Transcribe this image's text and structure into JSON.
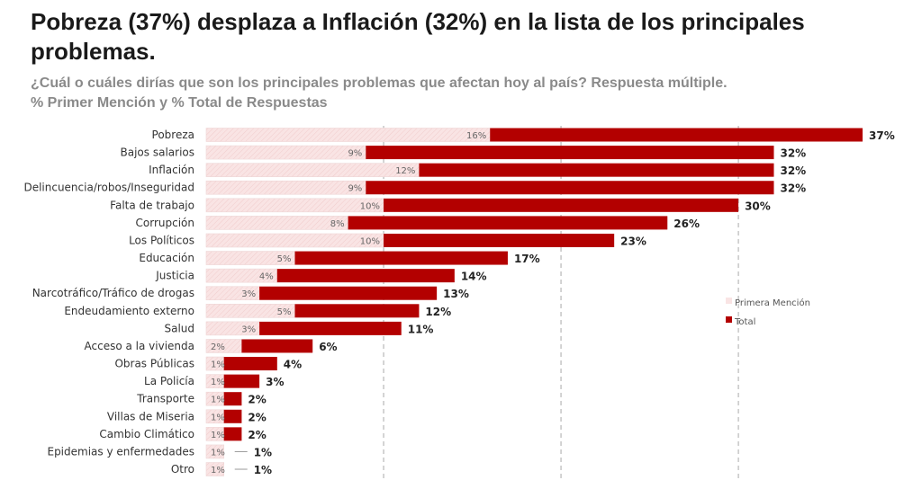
{
  "header": {
    "title": "Pobreza (37%) desplaza a Inflación (32%) en la lista de los principales problemas.",
    "subtitle_line1": "¿Cuál o cuáles dirías que son los principales problemas que afectan hoy al país? Respuesta múltiple.",
    "subtitle_line2": "% Primer Mención y % Total de Respuestas"
  },
  "chart_data": {
    "type": "bar",
    "orientation": "horizontal",
    "categories": [
      "Pobreza",
      "Bajos salarios",
      "Inflación",
      "Delincuencia/robos/Inseguridad",
      "Falta de trabajo",
      "Corrupción",
      "Los Políticos",
      "Educación",
      "Justicia",
      "Narcotráfico/Tráfico de drogas",
      "Endeudamiento externo",
      "Salud",
      "Acceso a la vivienda",
      "Obras Públicas",
      "La Policía",
      "Transporte",
      "Villas de Miseria",
      "Cambio Climático",
      "Epidemias y enfermedades",
      "Otro"
    ],
    "series": [
      {
        "name": "Primera Mención",
        "color": "#f9e4e4",
        "values": [
          16,
          9,
          12,
          9,
          10,
          8,
          10,
          5,
          4,
          3,
          5,
          3,
          2,
          1,
          1,
          1,
          1,
          1,
          1,
          1
        ]
      },
      {
        "name": "Total",
        "color": "#b30000",
        "values": [
          37,
          32,
          32,
          32,
          30,
          26,
          23,
          17,
          14,
          13,
          12,
          11,
          6,
          4,
          3,
          2,
          2,
          2,
          1,
          1
        ]
      }
    ],
    "value_suffix": "%",
    "xlim": [
      0,
      40
    ],
    "grid": true,
    "legend_position": "right"
  }
}
